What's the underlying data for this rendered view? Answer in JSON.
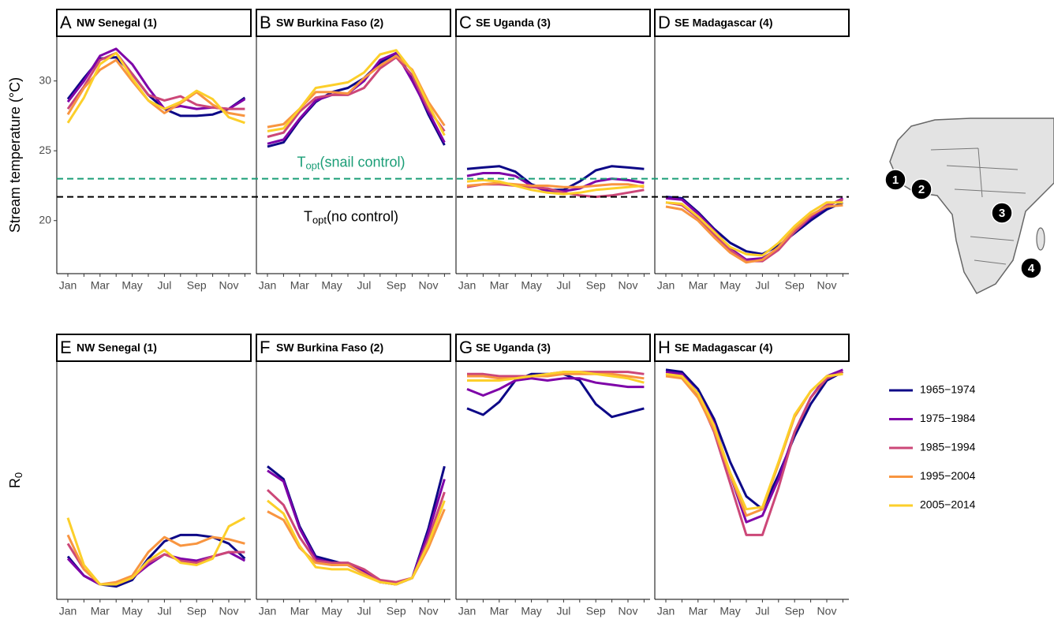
{
  "chart_data": [
    {
      "type": "line",
      "letter": "A",
      "title": "NW Senegal (1)",
      "ylabel": "Stream temperature (°C)",
      "categories": [
        "Jan",
        null,
        "Mar",
        null,
        "May",
        null,
        "Jul",
        null,
        "Sep",
        null,
        "Nov",
        null
      ],
      "ylim": [
        16.2,
        33.2
      ],
      "yticks": [
        20,
        25,
        30
      ],
      "series": [
        {
          "values": [
            28.7,
            30.2,
            31.6,
            31.7,
            30.5,
            29.0,
            28.0,
            27.5,
            27.5,
            27.6,
            28.0,
            28.8
          ]
        },
        {
          "values": [
            28.5,
            30.0,
            31.8,
            32.3,
            31.2,
            29.5,
            28.0,
            28.2,
            28.0,
            28.1,
            28.0,
            28.7
          ]
        },
        {
          "values": [
            28.0,
            29.6,
            31.5,
            32.0,
            30.5,
            29.0,
            28.6,
            28.9,
            28.3,
            28.1,
            28.0,
            28.0
          ]
        },
        {
          "values": [
            27.6,
            29.5,
            30.8,
            31.5,
            30.0,
            28.6,
            27.7,
            28.4,
            29.2,
            28.3,
            27.7,
            27.5
          ]
        },
        {
          "values": [
            27.0,
            28.8,
            31.2,
            32.0,
            30.2,
            28.6,
            28.0,
            28.5,
            29.3,
            28.7,
            27.4,
            27.0
          ]
        }
      ]
    },
    {
      "type": "line",
      "letter": "B",
      "title": "SW Burkina Faso (2)",
      "categories": [
        "Jan",
        null,
        "Mar",
        null,
        "May",
        null,
        "Jul",
        null,
        "Sep",
        null,
        "Nov",
        null
      ],
      "ylim": [
        16.2,
        33.2
      ],
      "series": [
        {
          "values": [
            25.3,
            25.6,
            27.2,
            28.5,
            29.2,
            29.5,
            30.2,
            31.3,
            32.0,
            30.2,
            27.6,
            25.4
          ]
        },
        {
          "values": [
            25.5,
            25.8,
            27.3,
            28.6,
            29.0,
            29.1,
            30.0,
            31.5,
            32.0,
            30.0,
            27.8,
            25.6
          ]
        },
        {
          "values": [
            26.0,
            26.3,
            27.8,
            28.8,
            29.0,
            29.0,
            29.5,
            30.9,
            31.7,
            30.4,
            28.0,
            26.4
          ]
        },
        {
          "values": [
            26.7,
            26.9,
            28.0,
            29.2,
            29.2,
            29.1,
            30.2,
            31.1,
            31.8,
            30.8,
            28.5,
            26.8
          ]
        },
        {
          "values": [
            26.4,
            26.6,
            28.0,
            29.5,
            29.7,
            29.9,
            30.6,
            31.9,
            32.2,
            30.7,
            28.3,
            26.1
          ]
        }
      ]
    },
    {
      "type": "line",
      "letter": "C",
      "title": "SE Uganda (3)",
      "categories": [
        "Jan",
        null,
        "Mar",
        null,
        "May",
        null,
        "Jul",
        null,
        "Sep",
        null,
        "Nov",
        null
      ],
      "ylim": [
        16.2,
        33.2
      ],
      "series": [
        {
          "values": [
            23.7,
            23.8,
            23.9,
            23.5,
            22.6,
            22.2,
            22.2,
            22.8,
            23.6,
            23.9,
            23.8,
            23.7
          ]
        },
        {
          "values": [
            23.2,
            23.4,
            23.4,
            23.2,
            22.5,
            22.1,
            22.1,
            22.3,
            22.8,
            23.0,
            22.9,
            22.7
          ]
        },
        {
          "values": [
            22.4,
            22.6,
            22.6,
            22.5,
            22.4,
            22.3,
            22.0,
            21.8,
            21.7,
            21.8,
            22.0,
            22.2
          ]
        },
        {
          "values": [
            22.5,
            22.6,
            22.7,
            22.6,
            22.5,
            22.5,
            22.4,
            22.4,
            22.5,
            22.6,
            22.6,
            22.4
          ]
        },
        {
          "values": [
            22.8,
            22.9,
            22.8,
            22.5,
            22.2,
            22.0,
            21.9,
            22.0,
            22.2,
            22.3,
            22.4,
            22.5
          ]
        }
      ]
    },
    {
      "type": "line",
      "letter": "D",
      "title": "SE Madagascar (4)",
      "categories": [
        "Jan",
        null,
        "Mar",
        null,
        "May",
        null,
        "Jul",
        null,
        "Sep",
        null,
        "Nov",
        null
      ],
      "ylim": [
        16.2,
        33.2
      ],
      "series": [
        {
          "values": [
            21.7,
            21.6,
            20.6,
            19.4,
            18.4,
            17.8,
            17.6,
            18.2,
            19.1,
            20.0,
            20.8,
            21.3
          ]
        },
        {
          "values": [
            21.6,
            21.5,
            20.5,
            19.3,
            18.0,
            17.2,
            17.3,
            18.0,
            19.2,
            20.2,
            21.0,
            21.6
          ]
        },
        {
          "values": [
            21.3,
            21.1,
            20.2,
            19.0,
            17.9,
            17.1,
            17.1,
            17.9,
            19.2,
            20.3,
            21.1,
            21.5
          ]
        },
        {
          "values": [
            21.0,
            20.8,
            20.0,
            18.8,
            17.7,
            17.0,
            17.2,
            18.1,
            19.4,
            20.4,
            21.0,
            21.1
          ]
        },
        {
          "values": [
            21.3,
            21.2,
            20.3,
            19.2,
            18.1,
            17.6,
            17.5,
            18.4,
            19.6,
            20.6,
            21.3,
            21.3
          ]
        }
      ]
    },
    {
      "type": "line",
      "letter": "E",
      "title": "NW Senegal (1)",
      "ylabel": "R",
      "ylabel_sub": "0",
      "categories": [
        "Jan",
        null,
        "Mar",
        null,
        "May",
        null,
        "Jul",
        null,
        "Sep",
        null,
        "Nov",
        null
      ],
      "ylim": [
        -0.06,
        1.05
      ],
      "series": [
        {
          "values": [
            0.14,
            0.05,
            0.01,
            0.0,
            0.03,
            0.13,
            0.21,
            0.24,
            0.24,
            0.23,
            0.2,
            0.13
          ]
        },
        {
          "values": [
            0.13,
            0.05,
            0.01,
            0.01,
            0.04,
            0.1,
            0.15,
            0.13,
            0.12,
            0.14,
            0.16,
            0.12
          ]
        },
        {
          "values": [
            0.2,
            0.08,
            0.01,
            0.01,
            0.04,
            0.11,
            0.15,
            0.12,
            0.11,
            0.14,
            0.16,
            0.16
          ]
        },
        {
          "values": [
            0.24,
            0.08,
            0.01,
            0.02,
            0.05,
            0.16,
            0.23,
            0.19,
            0.2,
            0.23,
            0.22,
            0.2
          ]
        },
        {
          "values": [
            0.32,
            0.1,
            0.01,
            0.01,
            0.04,
            0.12,
            0.17,
            0.11,
            0.1,
            0.13,
            0.28,
            0.32
          ]
        }
      ]
    },
    {
      "type": "line",
      "letter": "F",
      "title": "SW Burkina Faso (2)",
      "categories": [
        "Jan",
        null,
        "Mar",
        null,
        "May",
        null,
        "Jul",
        null,
        "Sep",
        null,
        "Nov",
        null
      ],
      "ylim": [
        -0.06,
        1.05
      ],
      "series": [
        {
          "values": [
            0.56,
            0.5,
            0.28,
            0.14,
            0.12,
            0.1,
            0.06,
            0.02,
            0.01,
            0.04,
            0.27,
            0.56
          ]
        },
        {
          "values": [
            0.54,
            0.49,
            0.27,
            0.13,
            0.11,
            0.11,
            0.07,
            0.02,
            0.01,
            0.04,
            0.25,
            0.5
          ]
        },
        {
          "values": [
            0.45,
            0.38,
            0.23,
            0.12,
            0.11,
            0.11,
            0.08,
            0.03,
            0.02,
            0.04,
            0.22,
            0.44
          ]
        },
        {
          "values": [
            0.35,
            0.31,
            0.18,
            0.11,
            0.1,
            0.1,
            0.06,
            0.02,
            0.01,
            0.04,
            0.18,
            0.36
          ]
        },
        {
          "values": [
            0.4,
            0.34,
            0.19,
            0.09,
            0.08,
            0.08,
            0.05,
            0.02,
            0.01,
            0.04,
            0.2,
            0.4
          ]
        }
      ]
    },
    {
      "type": "line",
      "letter": "G",
      "title": "SE Uganda (3)",
      "categories": [
        "Jan",
        null,
        "Mar",
        null,
        "May",
        null,
        "Jul",
        null,
        "Sep",
        null,
        "Nov",
        null
      ],
      "ylim": [
        -0.06,
        1.05
      ],
      "series": [
        {
          "values": [
            0.83,
            0.8,
            0.86,
            0.96,
            0.99,
            0.99,
            0.99,
            0.96,
            0.85,
            0.79,
            0.81,
            0.83
          ]
        },
        {
          "values": [
            0.92,
            0.89,
            0.92,
            0.96,
            0.97,
            0.96,
            0.97,
            0.97,
            0.95,
            0.94,
            0.93,
            0.93
          ]
        },
        {
          "values": [
            0.99,
            0.99,
            0.98,
            0.98,
            0.98,
            0.99,
            1.0,
            1.0,
            1.0,
            1.0,
            1.0,
            0.99
          ]
        },
        {
          "values": [
            0.98,
            0.98,
            0.97,
            0.97,
            0.98,
            0.98,
            0.99,
            0.99,
            0.99,
            0.99,
            0.98,
            0.97
          ]
        },
        {
          "values": [
            0.96,
            0.96,
            0.96,
            0.97,
            0.98,
            0.99,
            1.0,
            1.0,
            0.99,
            0.98,
            0.97,
            0.95
          ]
        }
      ]
    },
    {
      "type": "line",
      "letter": "H",
      "title": "SE Madagascar (4)",
      "categories": [
        "Jan",
        null,
        "Mar",
        null,
        "May",
        null,
        "Jul",
        null,
        "Sep",
        null,
        "Nov",
        null
      ],
      "ylim": [
        -0.06,
        1.05
      ],
      "series": [
        {
          "values": [
            1.01,
            1.0,
            0.92,
            0.78,
            0.58,
            0.42,
            0.36,
            0.52,
            0.7,
            0.85,
            0.96,
            1.0
          ]
        },
        {
          "values": [
            1.0,
            0.99,
            0.9,
            0.76,
            0.52,
            0.3,
            0.33,
            0.5,
            0.72,
            0.88,
            0.98,
            1.01
          ]
        },
        {
          "values": [
            0.99,
            0.98,
            0.89,
            0.72,
            0.48,
            0.24,
            0.24,
            0.46,
            0.72,
            0.88,
            0.97,
            1.0
          ]
        },
        {
          "values": [
            0.98,
            0.97,
            0.88,
            0.73,
            0.52,
            0.33,
            0.36,
            0.57,
            0.79,
            0.91,
            0.98,
            0.99
          ]
        },
        {
          "values": [
            0.99,
            0.98,
            0.9,
            0.75,
            0.53,
            0.36,
            0.37,
            0.58,
            0.8,
            0.91,
            0.98,
            0.99
          ]
        }
      ]
    }
  ],
  "legend": {
    "position": "right",
    "series": [
      {
        "name": "1965−1974",
        "color": "#0d0887"
      },
      {
        "name": "1975−1984",
        "color": "#7e03a8"
      },
      {
        "name": "1985−1994",
        "color": "#cc4778"
      },
      {
        "name": "1995−2004",
        "color": "#f89540"
      },
      {
        "name": "2005−2014",
        "color": "#fccf2a"
      }
    ]
  },
  "reference_lines": [
    {
      "value": 23.0,
      "color": "#1b9e77",
      "label": "T",
      "label_sub": "opt",
      "label_suffix": "(snail control)",
      "label_side": "above"
    },
    {
      "value": 21.7,
      "color": "#000000",
      "label": "T",
      "label_sub": "opt",
      "label_suffix": "(no control)",
      "label_side": "below"
    }
  ],
  "map": {
    "markers": [
      "1",
      "2",
      "3",
      "4"
    ]
  }
}
